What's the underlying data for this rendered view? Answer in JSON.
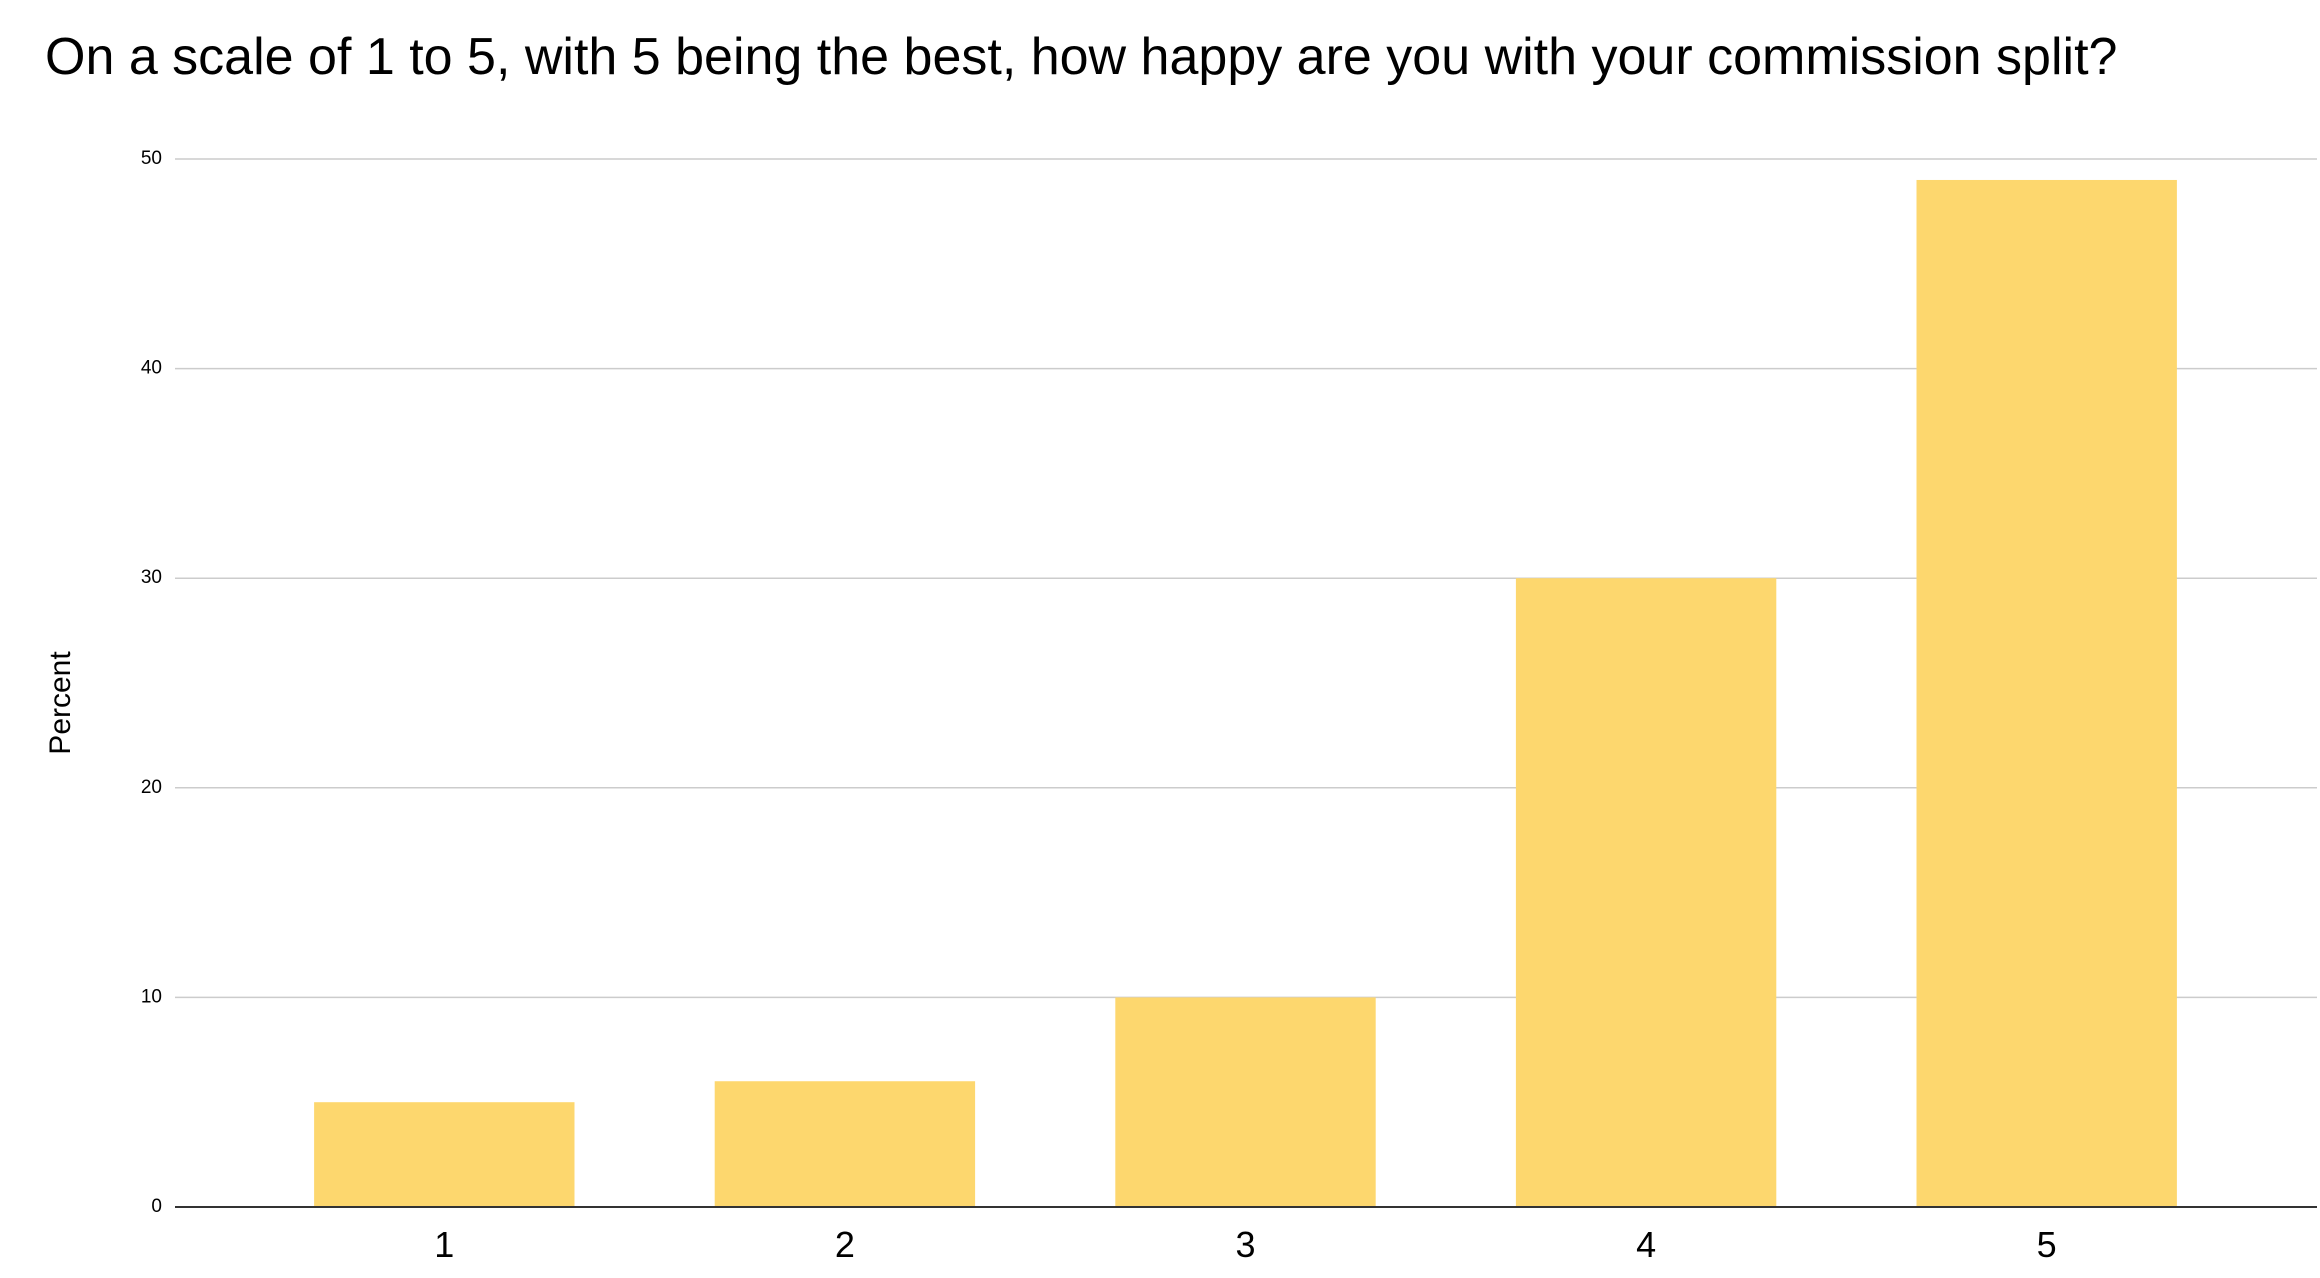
{
  "chart_data": {
    "type": "bar",
    "title": "On a scale of 1 to 5, with 5 being the best, how happy are you with your commission split?",
    "y_label": "Percent",
    "categories": [
      "1",
      "2",
      "3",
      "4",
      "5"
    ],
    "values": [
      5,
      6,
      10,
      30,
      49
    ],
    "color": "#fdd76e",
    "ylim": [
      0,
      50
    ],
    "yticks": [
      0,
      10,
      20,
      30,
      40,
      50
    ],
    "grid": true
  }
}
